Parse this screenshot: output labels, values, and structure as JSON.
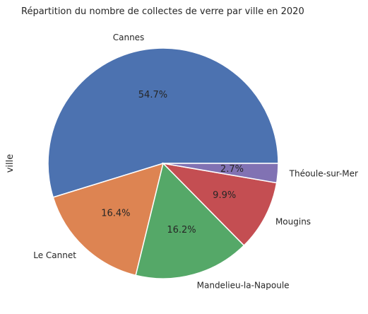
{
  "chart_data": {
    "type": "pie",
    "title": "Répartition du nombre de collectes de verre par ville en 2020",
    "ylabel": "ville",
    "start_angle_deg": 0,
    "direction": "counterclockwise",
    "slices": [
      {
        "label": "Cannes",
        "value": 54.7,
        "pct_label": "54.7%",
        "color": "#4c72b0"
      },
      {
        "label": "Le Cannet",
        "value": 16.4,
        "pct_label": "16.4%",
        "color": "#dd8452"
      },
      {
        "label": "Mandelieu-la-Napoule",
        "value": 16.2,
        "pct_label": "16.2%",
        "color": "#55a868"
      },
      {
        "label": "Mougins",
        "value": 9.9,
        "pct_label": "9.9%",
        "color": "#c44e52"
      },
      {
        "label": "Théoule-sur-Mer",
        "value": 2.7,
        "pct_label": "2.7%",
        "color": "#8172b3"
      }
    ]
  }
}
